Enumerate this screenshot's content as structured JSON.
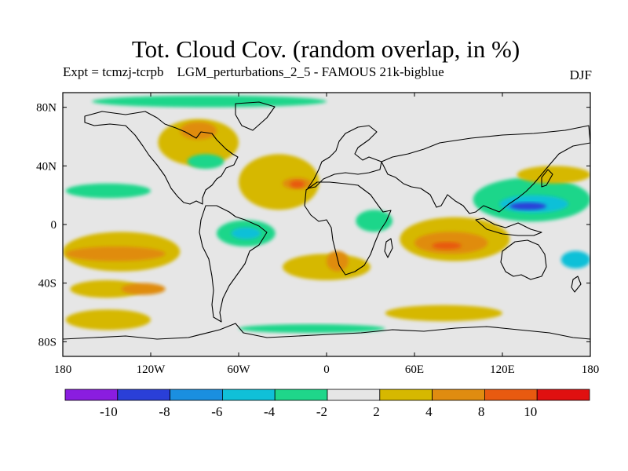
{
  "title": "Tot. Cloud Cov. (random overlap, in %)",
  "subtitle": "Expt = tcmzj-tcrpb    LGM_perturbations_2_5 - FAMOUS 21k-bigblue",
  "season": "DJF",
  "colors": {
    "background": "#e6e6e6",
    "neg12": "#8a1de0",
    "neg10": "#2a3fd8",
    "neg8": "#1a8fe0",
    "neg6": "#10c0d8",
    "neg4": "#1fd68a",
    "zero": "#e6e6e6",
    "pos2": "#d6b800",
    "pos4": "#e08c10",
    "pos8": "#e85a10",
    "pos10": "#e01010"
  },
  "chart_data": {
    "type": "map",
    "variable": "Total cloud cover difference (%)",
    "projection": "cylindrical equidistant",
    "lon_range": [
      -180,
      180
    ],
    "lat_range": [
      -90,
      90
    ],
    "x_ticks": [
      "180",
      "120W",
      "60W",
      "0",
      "60E",
      "120E",
      "180"
    ],
    "x_tick_values": [
      -180,
      -120,
      -60,
      0,
      60,
      120,
      180
    ],
    "y_ticks": [
      "80N",
      "40N",
      "0",
      "40S",
      "80S"
    ],
    "y_tick_values": [
      80,
      40,
      0,
      -40,
      -80
    ],
    "colorbar": {
      "labels": [
        "-10",
        "-8",
        "-6",
        "-4",
        "-2",
        "2",
        "4",
        "8",
        "10"
      ],
      "bins": [
        "neg12",
        "neg10",
        "neg8",
        "neg6",
        "neg4",
        "zero",
        "pos2",
        "pos4",
        "pos8",
        "pos10"
      ]
    },
    "regions": [
      {
        "name": "equatorial-east-pacific-positive",
        "level": "pos2",
        "lon": [
          -180,
          -100
        ],
        "lat": [
          -5,
          -32
        ]
      },
      {
        "name": "south-pacific-positive-core",
        "level": "pos4",
        "lon": [
          -178,
          -110
        ],
        "lat": [
          -15,
          -25
        ]
      },
      {
        "name": "south-pacific-midlat-positive",
        "level": "pos2",
        "lon": [
          -175,
          -125
        ],
        "lat": [
          -38,
          -50
        ]
      },
      {
        "name": "south-pacific-midlat-core",
        "level": "pos4",
        "lon": [
          -140,
          -110
        ],
        "lat": [
          -40,
          -48
        ]
      },
      {
        "name": "southern-ocean-pacific-positive",
        "level": "pos2",
        "lon": [
          -178,
          -120
        ],
        "lat": [
          -58,
          -72
        ]
      },
      {
        "name": "north-pacific-negative",
        "level": "neg4",
        "lon": [
          -178,
          -120
        ],
        "lat": [
          28,
          18
        ]
      },
      {
        "name": "north-america-positive",
        "level": "pos2",
        "lon": [
          -115,
          -60
        ],
        "lat": [
          72,
          40
        ]
      },
      {
        "name": "hudson-bay-core",
        "level": "pos4",
        "lon": [
          -100,
          -75
        ],
        "lat": [
          70,
          58
        ]
      },
      {
        "name": "eastern-us-negative",
        "level": "neg4",
        "lon": [
          -95,
          -70
        ],
        "lat": [
          48,
          38
        ]
      },
      {
        "name": "north-atlantic-positive",
        "level": "pos2",
        "lon": [
          -60,
          -5
        ],
        "lat": [
          48,
          10
        ]
      },
      {
        "name": "north-atlantic-core",
        "level": "pos4",
        "lon": [
          -30,
          -10
        ],
        "lat": [
          32,
          24
        ]
      },
      {
        "name": "north-atlantic-peak",
        "level": "pos8",
        "lon": [
          -25,
          -15
        ],
        "lat": [
          30,
          25
        ]
      },
      {
        "name": "equatorial-atlantic-negative",
        "level": "neg4",
        "lon": [
          -75,
          -35
        ],
        "lat": [
          3,
          -15
        ]
      },
      {
        "name": "equatorial-atlantic-core",
        "level": "neg6",
        "lon": [
          -65,
          -45
        ],
        "lat": [
          -2,
          -10
        ]
      },
      {
        "name": "south-atlantic-positive",
        "level": "pos2",
        "lon": [
          -30,
          30
        ],
        "lat": [
          -20,
          -38
        ]
      },
      {
        "name": "southern-africa-core",
        "level": "pos4",
        "lon": [
          0,
          15
        ],
        "lat": [
          -18,
          -32
        ]
      },
      {
        "name": "west-africa-negative",
        "level": "neg4",
        "lon": [
          20,
          45
        ],
        "lat": [
          10,
          -5
        ]
      },
      {
        "name": "indian-ocean-positive",
        "level": "pos2",
        "lon": [
          50,
          125
        ],
        "lat": [
          5,
          -25
        ]
      },
      {
        "name": "indian-ocean-core",
        "level": "pos4",
        "lon": [
          60,
          110
        ],
        "lat": [
          -5,
          -20
        ]
      },
      {
        "name": "indian-ocean-peak",
        "level": "pos8",
        "lon": [
          72,
          92
        ],
        "lat": [
          -12,
          -17
        ]
      },
      {
        "name": "west-pacific-negative",
        "level": "neg4",
        "lon": [
          100,
          180
        ],
        "lat": [
          32,
          2
        ]
      },
      {
        "name": "west-pacific-core",
        "level": "neg6",
        "lon": [
          118,
          165
        ],
        "lat": [
          20,
          8
        ]
      },
      {
        "name": "west-pacific-peak",
        "level": "neg10",
        "lon": [
          125,
          150
        ],
        "lat": [
          15,
          10
        ]
      },
      {
        "name": "north-pacific-west-positive",
        "level": "pos2",
        "lon": [
          130,
          180
        ],
        "lat": [
          40,
          28
        ]
      },
      {
        "name": "south-pacific-west-negative",
        "level": "neg6",
        "lon": [
          160,
          180
        ],
        "lat": [
          -18,
          -30
        ]
      },
      {
        "name": "arctic-negative",
        "level": "neg4",
        "lon": [
          -160,
          0
        ],
        "lat": [
          88,
          80
        ]
      },
      {
        "name": "southern-ocean-indian-positive",
        "level": "pos2",
        "lon": [
          40,
          120
        ],
        "lat": [
          -55,
          -66
        ]
      },
      {
        "name": "antarctic-negative",
        "level": "neg4",
        "lon": [
          -60,
          40
        ],
        "lat": [
          -68,
          -74
        ]
      }
    ]
  }
}
